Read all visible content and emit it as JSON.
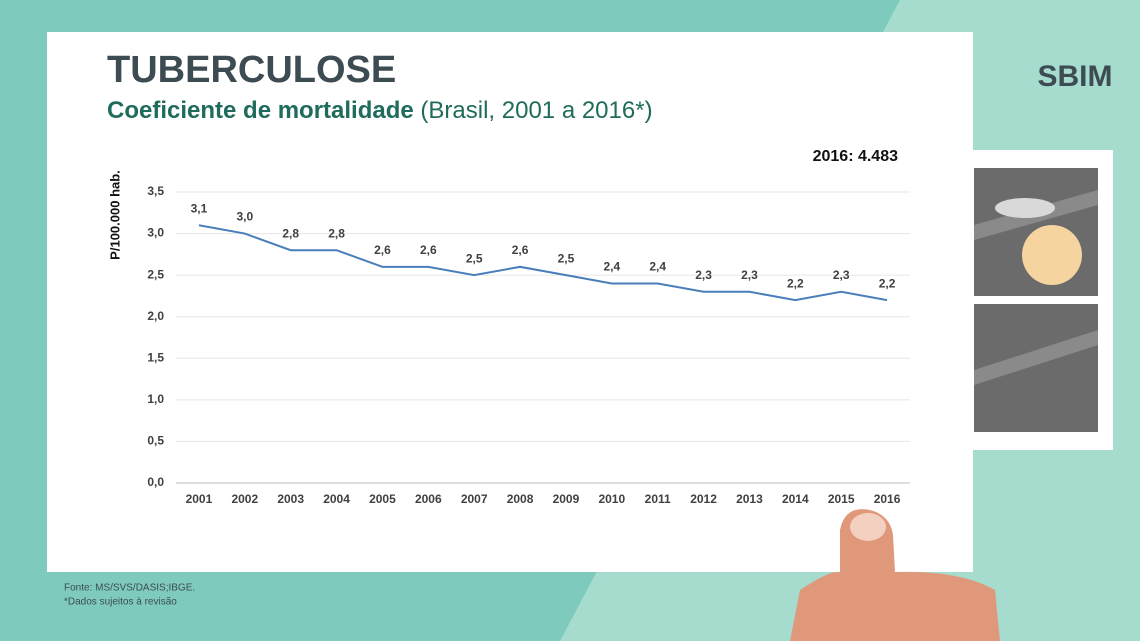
{
  "chart_data": {
    "type": "line",
    "title": "TUBERCULOSE",
    "subtitle": "Coeficiente de mortalidade",
    "subtitle_detail": "(Brasil, 2001 a 2016*)",
    "annotation": "2016: 4.483",
    "y_label": "P/100.000 hab.",
    "source": "Fonte: MS/SVS/DASIS;IBGE.",
    "note": "*Dados sujeitos à revisão",
    "logo": "SBIM",
    "categories": [
      "2001",
      "2002",
      "2003",
      "2004",
      "2005",
      "2006",
      "2007",
      "2008",
      "2009",
      "2010",
      "2011",
      "2012",
      "2013",
      "2014",
      "2015",
      "2016"
    ],
    "series": [
      {
        "name": "Coeficiente de mortalidade",
        "color": "#4a7ebb",
        "values": [
          3.1,
          3.0,
          2.8,
          2.8,
          2.6,
          2.6,
          2.5,
          2.6,
          2.5,
          2.4,
          2.4,
          2.3,
          2.3,
          2.2,
          2.3,
          2.2
        ],
        "value_labels": [
          "3,1",
          "3,0",
          "2,8",
          "2,8",
          "2,6",
          "2,6",
          "2,5",
          "2,6",
          "2,5",
          "2,4",
          "2,4",
          "2,3",
          "2,3",
          "2,2",
          "2,3",
          "2,2"
        ]
      }
    ],
    "ylim": [
      0,
      3.5
    ],
    "yticks": [
      {
        "value": 0,
        "label": "0,0"
      },
      {
        "value": 0.5,
        "label": "0,5"
      },
      {
        "value": 1,
        "label": "1,0"
      },
      {
        "value": 1.5,
        "label": "1,5"
      },
      {
        "value": 2,
        "label": "2,0"
      },
      {
        "value": 2.5,
        "label": "2,5"
      },
      {
        "value": 3,
        "label": "3,0"
      },
      {
        "value": 3.5,
        "label": "3,5"
      }
    ],
    "grid": true
  }
}
